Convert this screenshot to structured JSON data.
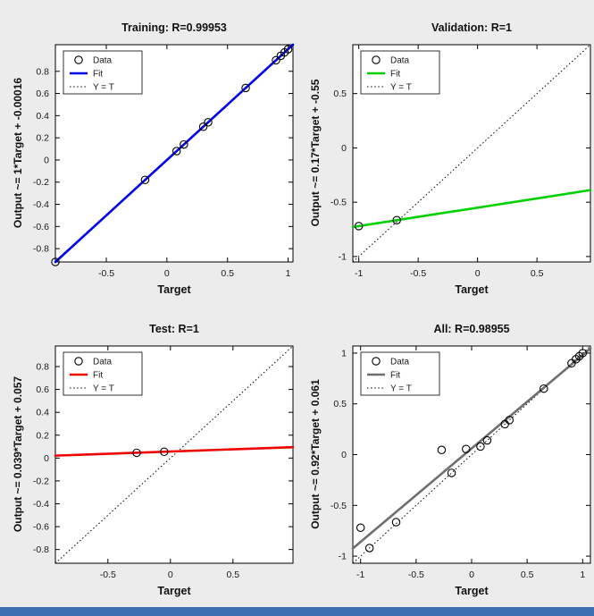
{
  "window": {
    "background_color": "#ececec",
    "taskbar_color": "#3d6fb4"
  },
  "legend": {
    "entries": [
      "Data",
      "Fit",
      "Y = T"
    ]
  },
  "chart_data": [
    {
      "type": "scatter",
      "title": "Training: R=0.99953",
      "xlabel": "Target",
      "ylabel": "Output ~= 1*Target + -0.00016",
      "legend_position": "top-left",
      "grid": false,
      "fit": {
        "slope": 1,
        "intercept": -0.00016,
        "color": "#0000ee"
      },
      "identity_line": true,
      "xlim": [
        -0.92,
        1.04
      ],
      "ylim": [
        -0.92,
        1.04
      ],
      "xticks": [
        -0.5,
        0,
        0.5,
        1
      ],
      "yticks": [
        -0.8,
        -0.6,
        -0.4,
        -0.2,
        0,
        0.2,
        0.4,
        0.6,
        0.8
      ],
      "points": [
        [
          -0.92,
          -0.92
        ],
        [
          -0.18,
          -0.18
        ],
        [
          0.08,
          0.08
        ],
        [
          0.14,
          0.14
        ],
        [
          0.3,
          0.3
        ],
        [
          0.34,
          0.34
        ],
        [
          0.65,
          0.65
        ],
        [
          0.9,
          0.9
        ],
        [
          0.94,
          0.94
        ],
        [
          0.97,
          0.97
        ],
        [
          1,
          1
        ]
      ]
    },
    {
      "type": "scatter",
      "title": "Validation: R=1",
      "xlabel": "Target",
      "ylabel": "Output ~= 0.17*Target + -0.55",
      "legend_position": "top-left",
      "grid": false,
      "fit": {
        "slope": 0.17,
        "intercept": -0.55,
        "color": "#00d000"
      },
      "identity_line": true,
      "xlim": [
        -1.05,
        0.95
      ],
      "ylim": [
        -1.05,
        0.95
      ],
      "xticks": [
        -1,
        -0.5,
        0,
        0.5
      ],
      "yticks": [
        -1,
        -0.5,
        0,
        0.5
      ],
      "points": [
        [
          -1,
          -0.72
        ],
        [
          -0.68,
          -0.665
        ]
      ]
    },
    {
      "type": "scatter",
      "title": "Test: R=1",
      "xlabel": "Target",
      "ylabel": "Output ~= 0.039*Target + 0.057",
      "legend_position": "top-left",
      "grid": false,
      "fit": {
        "slope": 0.039,
        "intercept": 0.057,
        "color": "#ee0000"
      },
      "identity_line": true,
      "xlim": [
        -0.92,
        0.98
      ],
      "ylim": [
        -0.92,
        0.98
      ],
      "xticks": [
        -0.5,
        0,
        0.5
      ],
      "yticks": [
        -0.8,
        -0.6,
        -0.4,
        -0.2,
        0,
        0.2,
        0.4,
        0.6,
        0.8
      ],
      "points": [
        [
          -0.27,
          0.046
        ],
        [
          -0.05,
          0.055
        ]
      ]
    },
    {
      "type": "scatter",
      "title": "All: R=0.98955",
      "xlabel": "Target",
      "ylabel": "Output ~= 0.92*Target + 0.061",
      "legend_position": "top-left",
      "grid": false,
      "fit": {
        "slope": 0.92,
        "intercept": 0.061,
        "color": "#6e6e6e"
      },
      "identity_line": true,
      "xlim": [
        -1.07,
        1.07
      ],
      "ylim": [
        -1.07,
        1.07
      ],
      "xticks": [
        -1,
        -0.5,
        0,
        0.5,
        1
      ],
      "yticks": [
        -1,
        -0.5,
        0,
        0.5,
        1
      ],
      "points": [
        [
          -1,
          -0.72
        ],
        [
          -0.92,
          -0.92
        ],
        [
          -0.68,
          -0.665
        ],
        [
          -0.27,
          0.046
        ],
        [
          -0.18,
          -0.18
        ],
        [
          -0.05,
          0.055
        ],
        [
          0.08,
          0.08
        ],
        [
          0.14,
          0.14
        ],
        [
          0.3,
          0.3
        ],
        [
          0.34,
          0.34
        ],
        [
          0.65,
          0.65
        ],
        [
          0.9,
          0.9
        ],
        [
          0.94,
          0.94
        ],
        [
          0.97,
          0.97
        ],
        [
          1,
          1
        ]
      ]
    }
  ]
}
